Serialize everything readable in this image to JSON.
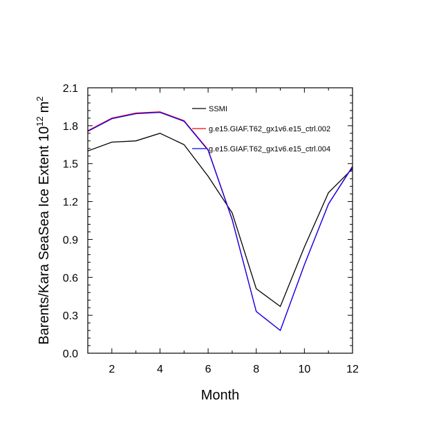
{
  "chart_data": {
    "type": "line",
    "title": "",
    "xlabel": "Month",
    "ylabel_main": "Barents/Kara SeaSea Ice Extent 10",
    "ylabel_exponent": "12",
    "ylabel_unit": "m",
    "ylabel_unit_exponent": "2",
    "xlim": [
      1,
      12
    ],
    "ylim": [
      0.0,
      2.1
    ],
    "xticks": [
      2,
      4,
      6,
      8,
      10,
      12
    ],
    "xtick_labels": [
      "2",
      "4",
      "6",
      "8",
      "10",
      "12"
    ],
    "yticks": [
      0.0,
      0.3,
      0.6,
      0.9,
      1.2,
      1.5,
      1.8,
      2.1
    ],
    "ytick_labels": [
      "0.0",
      "0.3",
      "0.6",
      "0.9",
      "1.2",
      "1.5",
      "1.8",
      "2.1"
    ],
    "x": [
      1,
      2,
      3,
      4,
      5,
      6,
      7,
      8,
      9,
      10,
      11,
      12
    ],
    "legend_position": "top-right inside",
    "series": [
      {
        "name": "SSMI",
        "color": "#000000",
        "values": [
          1.6,
          1.67,
          1.68,
          1.74,
          1.65,
          1.4,
          1.11,
          0.51,
          0.37,
          0.84,
          1.27,
          1.46
        ]
      },
      {
        "name": "g.e15.GIAF.T62_gx1v6.e15_ctrl.002",
        "color": "#ff0000",
        "values": [
          1.76,
          1.86,
          1.9,
          1.91,
          1.84,
          1.61,
          1.06,
          0.33,
          0.18,
          0.7,
          1.18,
          1.48
        ]
      },
      {
        "name": "g.e15.GIAF.T62_gx1v6.e15_ctrl.004",
        "color": "#0000ff",
        "values": [
          1.755,
          1.855,
          1.895,
          1.905,
          1.835,
          1.605,
          1.055,
          0.33,
          0.18,
          0.7,
          1.18,
          1.475
        ]
      }
    ]
  }
}
